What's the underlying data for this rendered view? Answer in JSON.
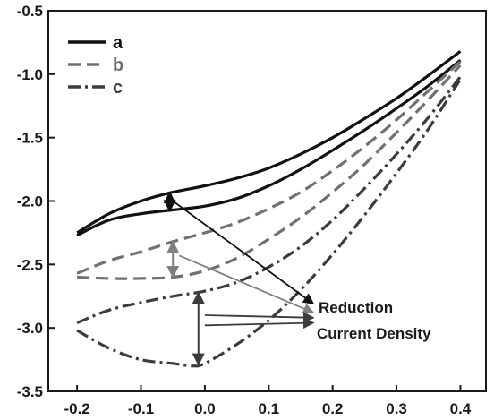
{
  "chart_data": {
    "type": "line",
    "title": "",
    "xlabel": "",
    "ylabel": "",
    "xlim": [
      -0.245,
      0.44
    ],
    "ylim": [
      -3.5,
      -0.5
    ],
    "x_ticks": [
      "-0.2",
      "-0.1",
      "0.0",
      "0.1",
      "0.2",
      "0.3",
      "0.4"
    ],
    "y_ticks": [
      "-0.5",
      "-1.0",
      "-1.5",
      "-2.0",
      "-2.5",
      "-3.0",
      "-3.5"
    ],
    "legend": {
      "position": "top-left"
    },
    "series": [
      {
        "name": "a",
        "color": "#111111",
        "dash": "solid",
        "upper": [
          [
            -0.2,
            -2.25
          ],
          [
            -0.15,
            -2.1
          ],
          [
            -0.1,
            -2.0
          ],
          [
            -0.05,
            -1.93
          ],
          [
            0.0,
            -1.88
          ],
          [
            0.05,
            -1.82
          ],
          [
            0.1,
            -1.74
          ],
          [
            0.15,
            -1.63
          ],
          [
            0.2,
            -1.5
          ],
          [
            0.25,
            -1.35
          ],
          [
            0.3,
            -1.19
          ],
          [
            0.35,
            -1.01
          ],
          [
            0.4,
            -0.82
          ]
        ],
        "lower": [
          [
            -0.2,
            -2.27
          ],
          [
            -0.15,
            -2.15
          ],
          [
            -0.1,
            -2.1
          ],
          [
            -0.05,
            -2.07
          ],
          [
            0.0,
            -2.04
          ],
          [
            0.05,
            -1.98
          ],
          [
            0.1,
            -1.88
          ],
          [
            0.15,
            -1.75
          ],
          [
            0.2,
            -1.6
          ],
          [
            0.25,
            -1.44
          ],
          [
            0.3,
            -1.27
          ],
          [
            0.35,
            -1.09
          ],
          [
            0.4,
            -0.89
          ]
        ]
      },
      {
        "name": "b",
        "color": "#707070",
        "dash": "dashed",
        "upper": [
          [
            -0.2,
            -2.57
          ],
          [
            -0.15,
            -2.47
          ],
          [
            -0.1,
            -2.4
          ],
          [
            -0.05,
            -2.32
          ],
          [
            0.0,
            -2.25
          ],
          [
            0.05,
            -2.17
          ],
          [
            0.1,
            -2.06
          ],
          [
            0.15,
            -1.93
          ],
          [
            0.2,
            -1.76
          ],
          [
            0.25,
            -1.57
          ],
          [
            0.3,
            -1.36
          ],
          [
            0.35,
            -1.13
          ],
          [
            0.4,
            -0.9
          ]
        ],
        "lower": [
          [
            -0.2,
            -2.6
          ],
          [
            -0.15,
            -2.61
          ],
          [
            -0.1,
            -2.61
          ],
          [
            -0.05,
            -2.6
          ],
          [
            0.0,
            -2.55
          ],
          [
            0.05,
            -2.45
          ],
          [
            0.1,
            -2.3
          ],
          [
            0.15,
            -2.13
          ],
          [
            0.2,
            -1.93
          ],
          [
            0.25,
            -1.71
          ],
          [
            0.3,
            -1.46
          ],
          [
            0.35,
            -1.2
          ],
          [
            0.4,
            -0.93
          ]
        ]
      },
      {
        "name": "c",
        "color": "#3c3c3c",
        "dash": "dashdot",
        "upper": [
          [
            -0.2,
            -2.96
          ],
          [
            -0.15,
            -2.86
          ],
          [
            -0.1,
            -2.8
          ],
          [
            -0.05,
            -2.75
          ],
          [
            0.0,
            -2.71
          ],
          [
            0.05,
            -2.64
          ],
          [
            0.1,
            -2.52
          ],
          [
            0.15,
            -2.36
          ],
          [
            0.2,
            -2.15
          ],
          [
            0.25,
            -1.9
          ],
          [
            0.3,
            -1.63
          ],
          [
            0.35,
            -1.34
          ],
          [
            0.4,
            -1.02
          ]
        ],
        "lower": [
          [
            -0.2,
            -3.02
          ],
          [
            -0.15,
            -3.16
          ],
          [
            -0.1,
            -3.25
          ],
          [
            -0.05,
            -3.28
          ],
          [
            -0.02,
            -3.3
          ],
          [
            0.0,
            -3.28
          ],
          [
            0.05,
            -3.13
          ],
          [
            0.1,
            -2.94
          ],
          [
            0.15,
            -2.7
          ],
          [
            0.2,
            -2.42
          ],
          [
            0.25,
            -2.11
          ],
          [
            0.3,
            -1.78
          ],
          [
            0.35,
            -1.43
          ],
          [
            0.4,
            -1.04
          ]
        ]
      }
    ],
    "markers": [
      {
        "series": "a",
        "x": -0.055,
        "y1": -1.93,
        "y2": -2.08,
        "color": "#111111"
      },
      {
        "series": "b",
        "x": -0.05,
        "y1": -2.32,
        "y2": -2.6,
        "color": "#808080"
      },
      {
        "series": "c",
        "x": -0.01,
        "y1": -2.72,
        "y2": -3.29,
        "color": "#3c3c3c"
      }
    ],
    "annotation": {
      "lines": [
        "Reduction",
        "Current Density"
      ],
      "arrows": [
        {
          "from": [
            -0.05,
            -2.0
          ],
          "to": [
            0.17,
            -2.81
          ],
          "color": "#111111"
        },
        {
          "from": [
            -0.04,
            -2.43
          ],
          "to": [
            0.17,
            -2.88
          ],
          "color": "#808080"
        },
        {
          "from": [
            0.0,
            -2.9
          ],
          "to": [
            0.17,
            -2.92
          ],
          "color": "#3c3c3c"
        },
        {
          "from": [
            0.0,
            -2.98
          ],
          "to": [
            0.17,
            -2.96
          ],
          "color": "#3c3c3c"
        }
      ]
    }
  }
}
